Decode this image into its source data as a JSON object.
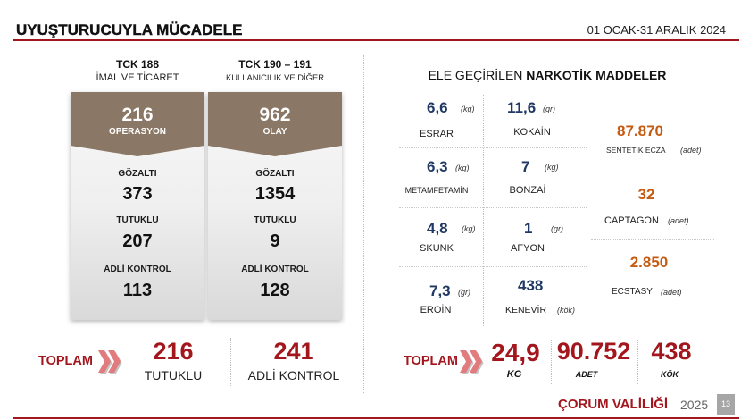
{
  "header": {
    "title": "UYUŞTURUCUYLA MÜCADELE",
    "date_range": "01 OCAK-31 ARALIK 2024"
  },
  "cases": [
    {
      "code": "TCK 188",
      "subtitle": "İMAL VE TİCARET",
      "main_value": "216",
      "main_label": "OPERASYON",
      "stats": [
        {
          "label": "GÖZALTI",
          "value": "373"
        },
        {
          "label": "TUTUKLU",
          "value": "207"
        },
        {
          "label": "ADLİ KONTROL",
          "value": "113"
        }
      ]
    },
    {
      "code": "TCK 190 – 191",
      "subtitle": "KULLANICILIK VE DİĞER",
      "main_value": "962",
      "main_label": "OLAY",
      "stats": [
        {
          "label": "GÖZALTI",
          "value": "1354"
        },
        {
          "label": "TUTUKLU",
          "value": "9"
        },
        {
          "label": "ADLİ KONTROL",
          "value": "128"
        }
      ]
    }
  ],
  "cases_total": {
    "label": "TOPLAM",
    "items": [
      {
        "value": "216",
        "label": "TUTUKLU"
      },
      {
        "value": "241",
        "label": "ADLİ KONTROL"
      }
    ]
  },
  "seizures": {
    "title_regular": "ELE GEÇİRİLEN",
    "title_bold": "NARKOTİK MADDELER",
    "substances": [
      {
        "value": "6,6",
        "unit": "(kg)",
        "name": "ESRAR"
      },
      {
        "value": "11,6",
        "unit": "(gr)",
        "name": "KOKAİN"
      },
      {
        "value": "6,3",
        "unit": "(kg)",
        "name": "METAMFETAMİN"
      },
      {
        "value": "7",
        "unit": "(kg)",
        "name": "BONZAİ"
      },
      {
        "value": "4,8",
        "unit": "(kg)",
        "name": "SKUNK"
      },
      {
        "value": "1",
        "unit": "(gr)",
        "name": "AFYON"
      },
      {
        "value": "7,3",
        "unit": "(gr)",
        "name": "EROİN"
      },
      {
        "value": "438",
        "unit": "(kök)",
        "name": "KENEVİR"
      }
    ],
    "counted": [
      {
        "value": "87.870",
        "name": "SENTETİK ECZA",
        "unit": "(adet)"
      },
      {
        "value": "32",
        "name": "CAPTAGON",
        "unit": "(adet)"
      },
      {
        "value": "2.850",
        "name": "ECSTASY",
        "unit": "(adet)"
      }
    ],
    "total": {
      "label": "TOPLAM",
      "items": [
        {
          "value": "24,9",
          "unit": "KG"
        },
        {
          "value": "90.752",
          "unit": "ADET"
        },
        {
          "value": "438",
          "unit": "KÖK"
        }
      ]
    }
  },
  "footer": {
    "organization": "ÇORUM VALİLİĞİ",
    "year": "2025",
    "page_number": "13"
  },
  "icons": {
    "total_marker": "double-chevron-right-icon"
  },
  "colors": {
    "accent_red": "#a3161d",
    "card_header": "#8a7765",
    "value_navy": "#1f3864",
    "count_orange": "#c55a11"
  }
}
